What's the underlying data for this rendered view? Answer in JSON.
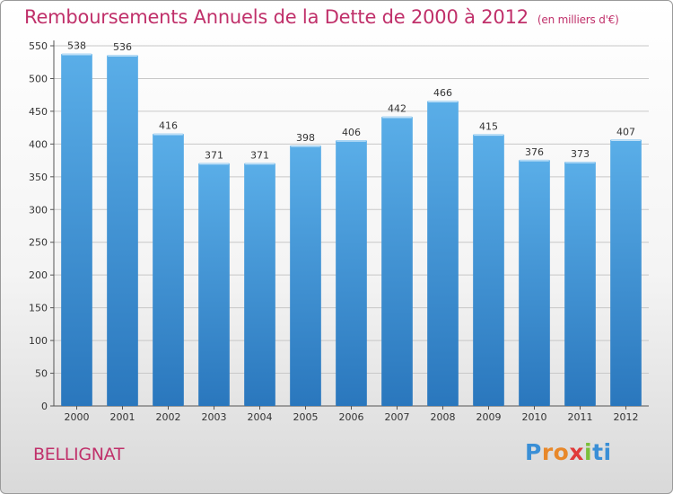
{
  "header": {
    "title": "Remboursements Annuels de la Dette de 2000 à 2012",
    "unit": "(en milliers d'€)"
  },
  "footer": {
    "commune": "BELLIGNAT",
    "brand": [
      "P",
      "r",
      "o",
      "x",
      "i",
      "t",
      "i"
    ]
  },
  "colors": {
    "bar": "#4a9ee0",
    "bar_dark": "#2a77bd",
    "title": "#c0306a",
    "grid": "#c8c8c8"
  },
  "chart_data": {
    "type": "bar",
    "title": "Remboursements Annuels de la Dette de 2000 à 2012",
    "xlabel": "",
    "ylabel": "",
    "categories": [
      "2000",
      "2001",
      "2002",
      "2003",
      "2004",
      "2005",
      "2006",
      "2007",
      "2008",
      "2009",
      "2010",
      "2011",
      "2012"
    ],
    "values": [
      538,
      536,
      416,
      371,
      371,
      398,
      406,
      442,
      466,
      415,
      376,
      373,
      407
    ],
    "ylim": [
      0,
      550
    ],
    "yticks": [
      0,
      50,
      100,
      150,
      200,
      250,
      300,
      350,
      400,
      450,
      500,
      550
    ],
    "grid": true,
    "legend": "none"
  }
}
